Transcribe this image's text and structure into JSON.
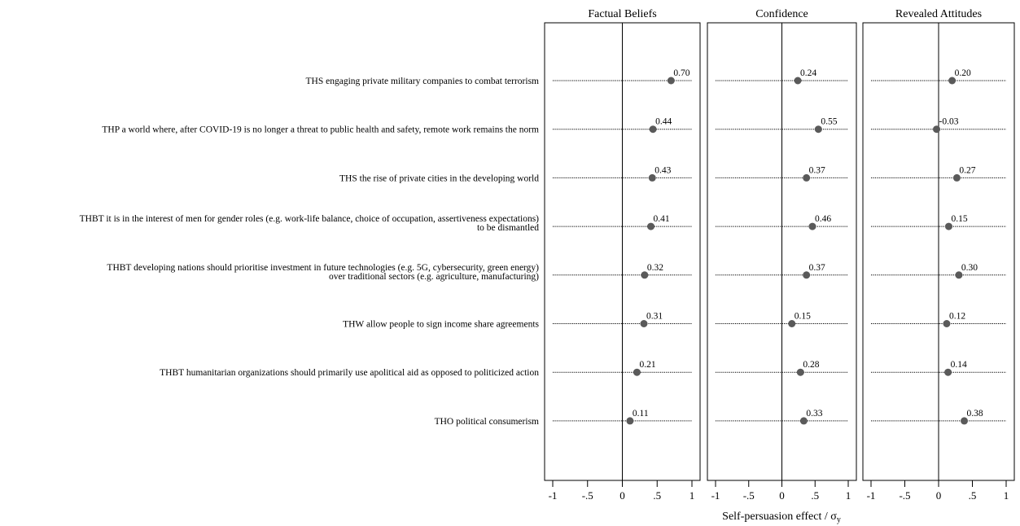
{
  "chart_data": {
    "type": "scatter",
    "xlabel": "Self-persuasion effect / σ",
    "xlabel_subscript": "y",
    "xlim": [
      -1,
      1
    ],
    "xticks": [
      {
        "value": -1,
        "label": "-1"
      },
      {
        "value": -0.5,
        "label": "-.5"
      },
      {
        "value": 0,
        "label": "0"
      },
      {
        "value": 0.5,
        "label": ".5"
      },
      {
        "value": 1,
        "label": "1"
      }
    ],
    "topics": [
      [
        "THS engaging private military companies to combat terrorism"
      ],
      [
        "THP a world where, after COVID-19 is no longer a threat to public health and safety, remote work remains the norm"
      ],
      [
        "THS the rise of private cities in the developing world"
      ],
      [
        "THBT it is in the interest of men for gender roles (e.g. work-life balance, choice of occupation, assertiveness expectations)",
        "to be dismantled"
      ],
      [
        "THBT developing nations should prioritise investment in future technologies (e.g. 5G, cybersecurity, green energy)",
        "over traditional sectors (e.g. agriculture, manufacturing)"
      ],
      [
        "THW allow people to sign income share agreements"
      ],
      [
        "THBT humanitarian organizations should primarily use apolitical aid as opposed to politicized action"
      ],
      [
        "THO political consumerism"
      ]
    ],
    "panels": [
      {
        "name": "Factual Beliefs",
        "values": [
          0.7,
          0.44,
          0.43,
          0.41,
          0.32,
          0.31,
          0.21,
          0.11
        ],
        "labels": [
          "0.70",
          "0.44",
          "0.43",
          "0.41",
          "0.32",
          "0.31",
          "0.21",
          "0.11"
        ]
      },
      {
        "name": "Confidence",
        "values": [
          0.24,
          0.55,
          0.37,
          0.46,
          0.37,
          0.15,
          0.28,
          0.33
        ],
        "labels": [
          "0.24",
          "0.55",
          "0.37",
          "0.46",
          "0.37",
          "0.15",
          "0.28",
          "0.33"
        ]
      },
      {
        "name": "Revealed Attitudes",
        "values": [
          0.2,
          -0.03,
          0.27,
          0.15,
          0.3,
          0.12,
          0.14,
          0.38
        ],
        "labels": [
          "0.20",
          "-0.03",
          "0.27",
          "0.15",
          "0.30",
          "0.12",
          "0.14",
          "0.38"
        ]
      }
    ],
    "colors": {
      "point": "#5a5a5a",
      "axis": "#000000",
      "line": "#000000"
    },
    "grid": false,
    "legend": "none"
  }
}
